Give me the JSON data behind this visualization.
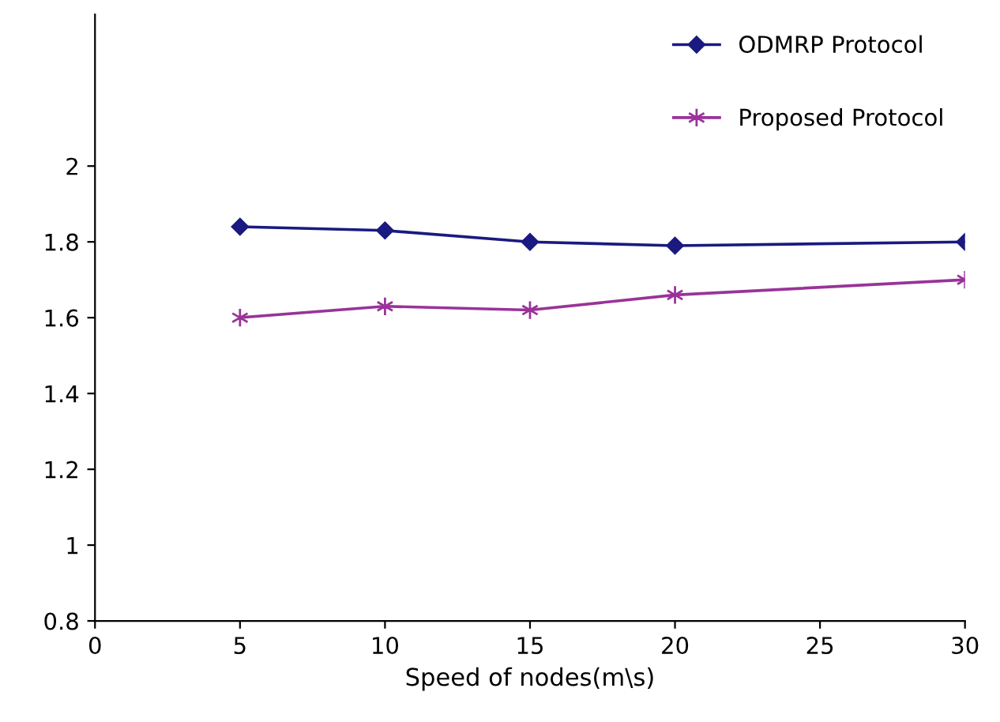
{
  "chart_data": {
    "type": "line",
    "xlabel": "Speed of nodes(m\\s)",
    "x": [
      5,
      10,
      15,
      20,
      30
    ],
    "series": [
      {
        "name": "ODMRP Protocol",
        "color": "#1a1a80",
        "marker": "diamond",
        "values": [
          1.84,
          1.83,
          1.8,
          1.79,
          1.8
        ]
      },
      {
        "name": "Proposed Protocol",
        "color": "#993399",
        "marker": "cross",
        "values": [
          1.6,
          1.63,
          1.62,
          1.66,
          1.7
        ]
      }
    ],
    "xlim": [
      0,
      30
    ],
    "xticks": [
      0,
      5,
      10,
      15,
      20,
      25,
      30
    ],
    "ylim": [
      0.8,
      2.4
    ],
    "yticks": [
      0.8,
      1,
      1.2,
      1.4,
      1.6,
      1.8,
      2
    ],
    "grid": false,
    "legend": "top right"
  }
}
